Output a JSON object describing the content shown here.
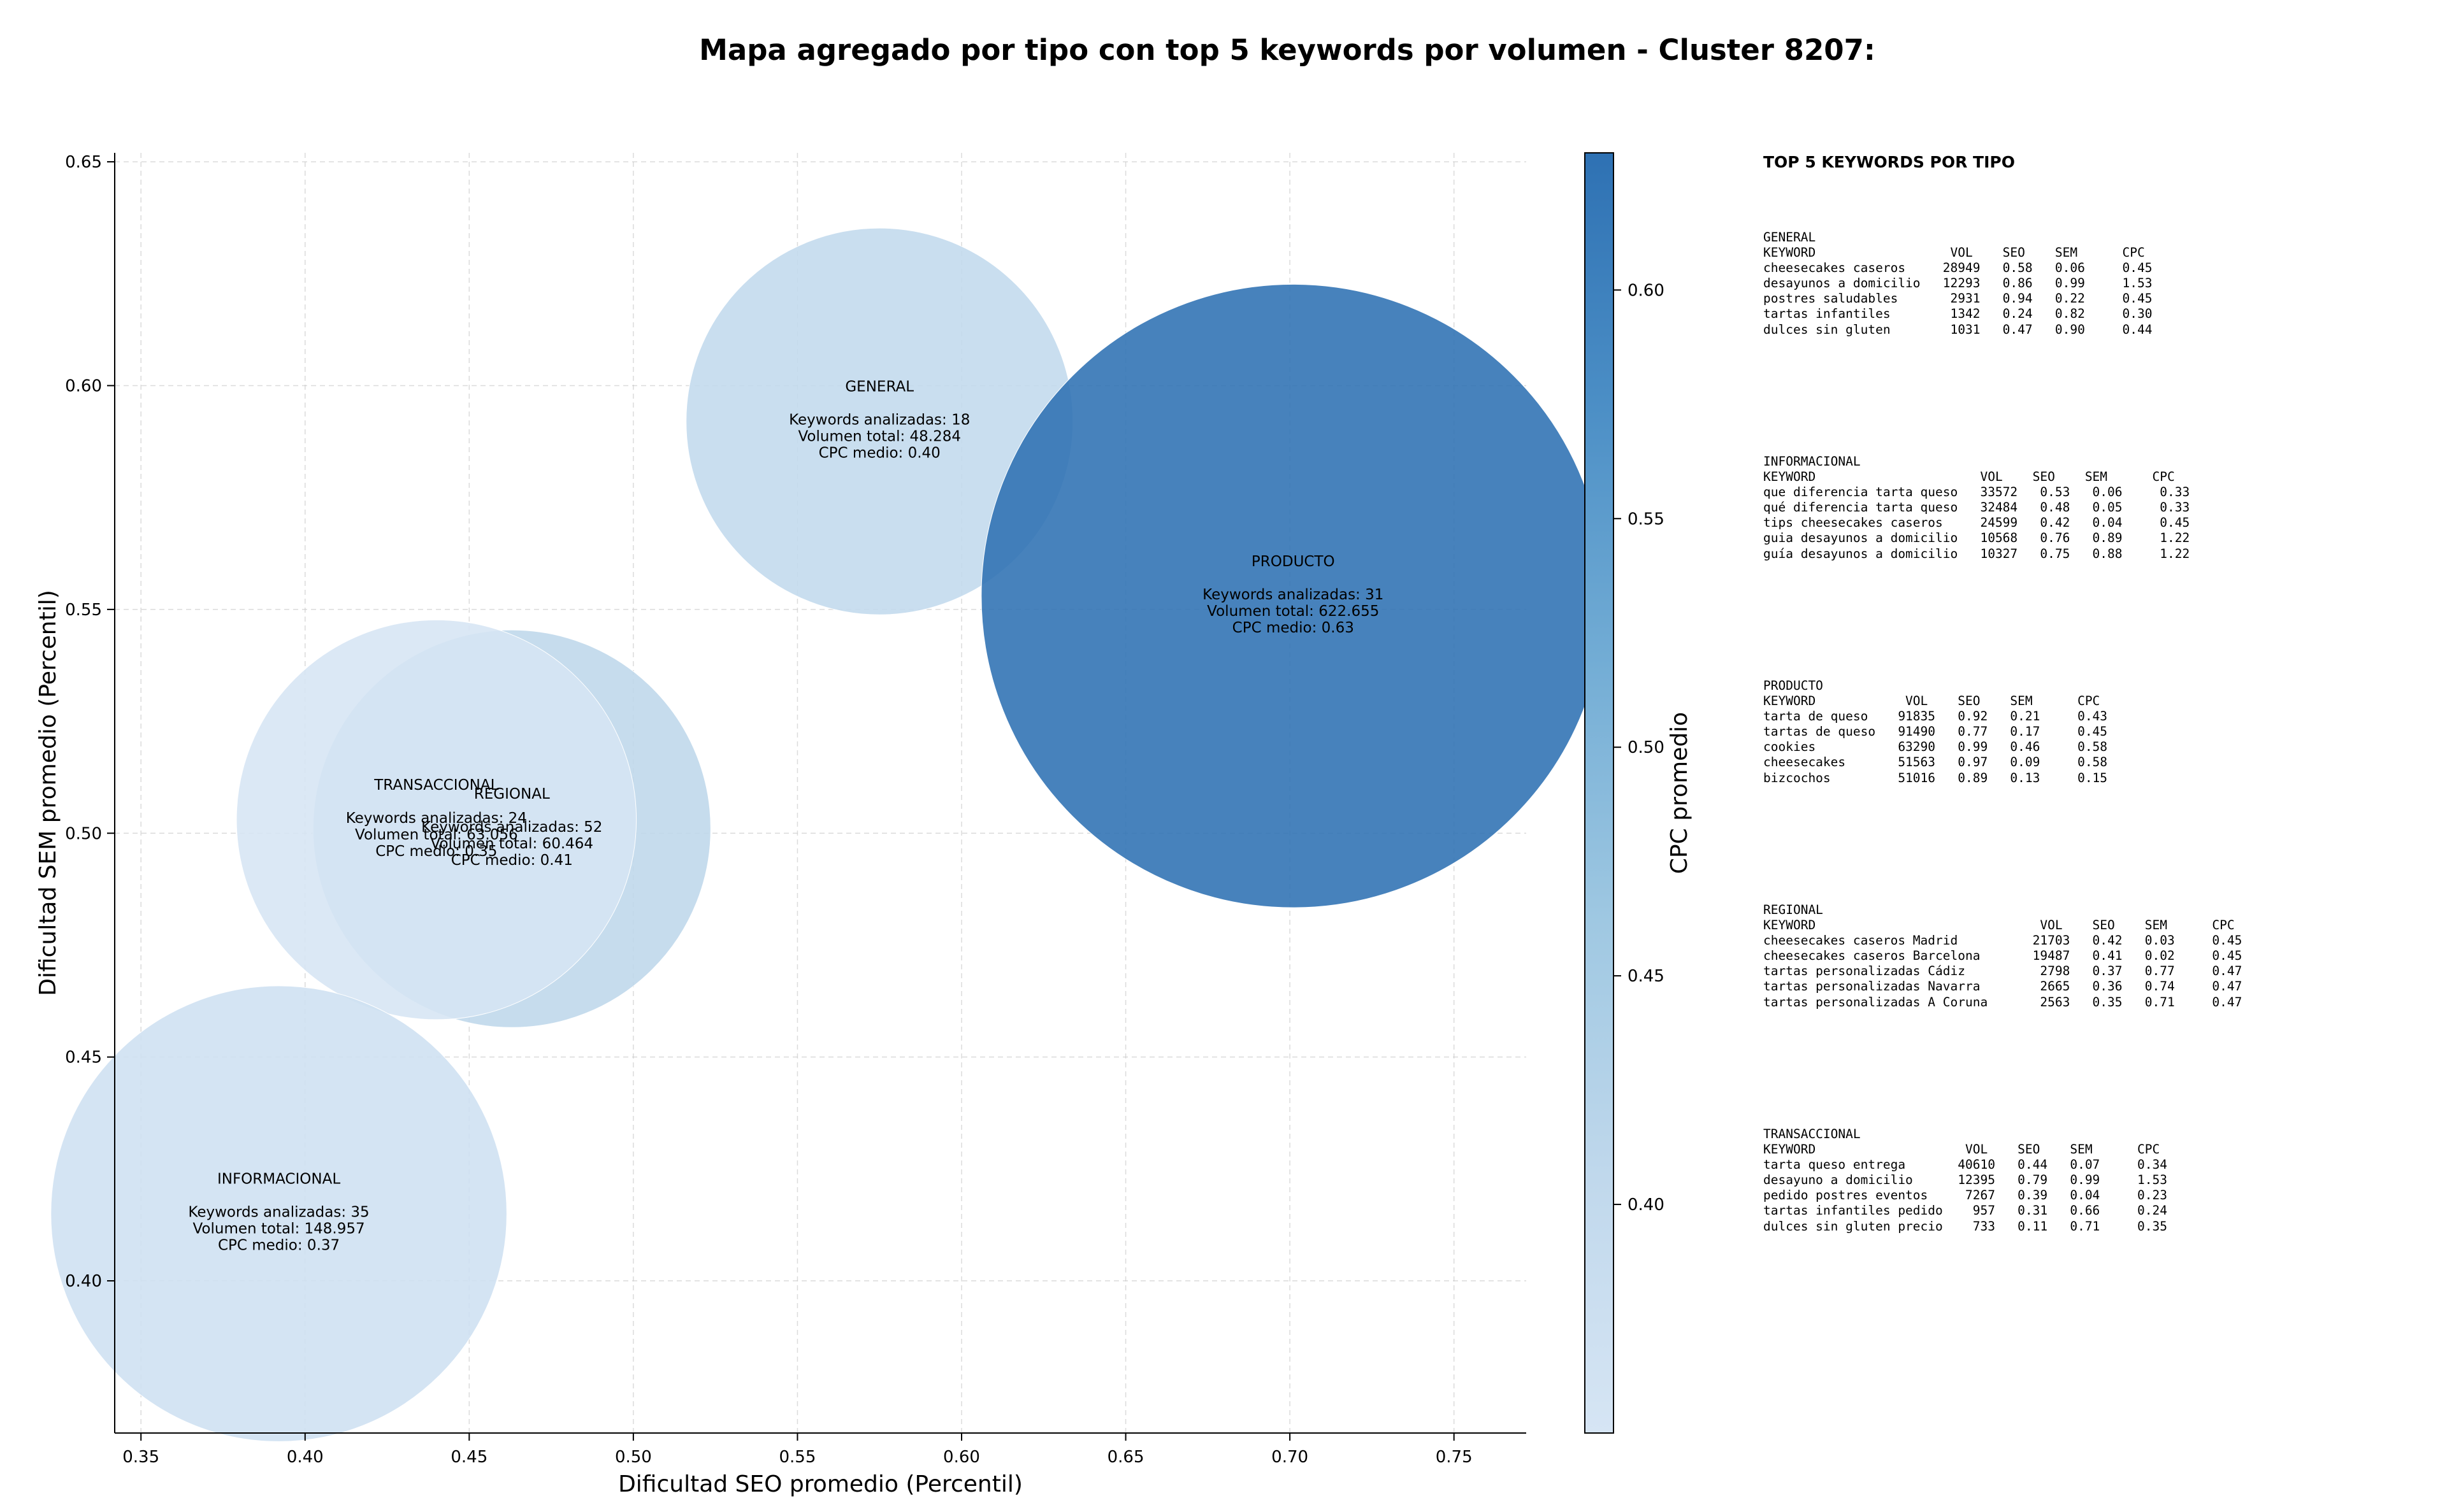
{
  "chart_data": {
    "type": "scatter",
    "title": "Mapa agregado por tipo con top 5 keywords por volumen - Cluster 8207:",
    "xlabel": "Dificultad SEO promedio (Percentil)",
    "ylabel": "Dificultad SEM promedio (Percentil)",
    "xlim": [
      0.342,
      0.772
    ],
    "ylim": [
      0.366,
      0.652
    ],
    "xticks": [
      "0.35",
      "0.40",
      "0.45",
      "0.50",
      "0.55",
      "0.60",
      "0.65",
      "0.70",
      "0.75"
    ],
    "yticks": [
      "0.40",
      "0.45",
      "0.50",
      "0.55",
      "0.60",
      "0.65"
    ],
    "grid": true,
    "colorbar": {
      "label": "CPC promedio",
      "range": [
        0.35,
        0.63
      ],
      "ticks": [
        "0.40",
        "0.45",
        "0.50",
        "0.55",
        "0.60"
      ],
      "colormap": "Blues"
    },
    "bubbles": [
      {
        "name": "GENERAL",
        "x": 0.575,
        "y": 0.592,
        "keywords_line": "Keywords analizadas: 18",
        "volume_line": "Volumen total: 48.284",
        "cpc_line": "CPC medio: 0.40",
        "keywords": 18,
        "volume": 48284,
        "cpc": 0.4
      },
      {
        "name": "PRODUCTO",
        "x": 0.701,
        "y": 0.553,
        "keywords_line": "Keywords analizadas: 31",
        "volume_line": "Volumen total: 622.655",
        "cpc_line": "CPC medio: 0.63",
        "keywords": 31,
        "volume": 622655,
        "cpc": 0.63
      },
      {
        "name": "REGIONAL",
        "x": 0.463,
        "y": 0.501,
        "keywords_line": "Keywords analizadas: 52",
        "volume_line": "Volumen total: 60.464",
        "cpc_line": "CPC medio: 0.41",
        "keywords": 52,
        "volume": 60464,
        "cpc": 0.41
      },
      {
        "name": "TRANSACCIONAL",
        "x": 0.44,
        "y": 0.503,
        "keywords_line": "Keywords analizadas: 24",
        "volume_line": "Volumen total: 63.056",
        "cpc_line": "CPC medio: 0.35",
        "keywords": 24,
        "volume": 63056,
        "cpc": 0.35
      },
      {
        "name": "INFORMACIONAL",
        "x": 0.392,
        "y": 0.415,
        "keywords_line": "Keywords analizadas: 35",
        "volume_line": "Volumen total: 148.957",
        "cpc_line": "CPC medio: 0.37",
        "keywords": 35,
        "volume": 148957,
        "cpc": 0.37
      }
    ]
  },
  "panel": {
    "title": "TOP 5 KEYWORDS POR TIPO",
    "blocks": [
      {
        "text": "GENERAL\nKEYWORD                  VOL    SEO    SEM      CPC\ncheesecakes caseros     28949   0.58   0.06     0.45\ndesayunos a domicilio   12293   0.86   0.99     1.53\npostres saludables       2931   0.94   0.22     0.45\ntartas infantiles        1342   0.24   0.82     0.30\ndulces sin gluten        1031   0.47   0.90     0.44"
      },
      {
        "text": "INFORMACIONAL\nKEYWORD                      VOL    SEO    SEM      CPC\nque diferencia tarta queso   33572   0.53   0.06     0.33\nqué diferencia tarta queso   32484   0.48   0.05     0.33\ntips cheesecakes caseros     24599   0.42   0.04     0.45\nguia desayunos a domicilio   10568   0.76   0.89     1.22\nguía desayunos a domicilio   10327   0.75   0.88     1.22"
      },
      {
        "text": "PRODUCTO\nKEYWORD            VOL    SEO    SEM      CPC\ntarta de queso    91835   0.92   0.21     0.43\ntartas de queso   91490   0.77   0.17     0.45\ncookies           63290   0.99   0.46     0.58\ncheesecakes       51563   0.97   0.09     0.58\nbizcochos         51016   0.89   0.13     0.15"
      },
      {
        "text": "REGIONAL\nKEYWORD                              VOL    SEO    SEM      CPC\ncheesecakes caseros Madrid          21703   0.42   0.03     0.45\ncheesecakes caseros Barcelona       19487   0.41   0.02     0.45\ntartas personalizadas Cádiz          2798   0.37   0.77     0.47\ntartas personalizadas Navarra        2665   0.36   0.74     0.47\ntartas personalizadas A Coruna       2563   0.35   0.71     0.47"
      },
      {
        "text": "TRANSACCIONAL\nKEYWORD                    VOL    SEO    SEM      CPC\ntarta queso entrega       40610   0.44   0.07     0.34\ndesayuno a domicilio      12395   0.79   0.99     1.53\npedido postres eventos     7267   0.39   0.04     0.23\ntartas infantiles pedido    957   0.31   0.66     0.24\ndulces sin gluten precio    733   0.11   0.71     0.35"
      }
    ]
  }
}
